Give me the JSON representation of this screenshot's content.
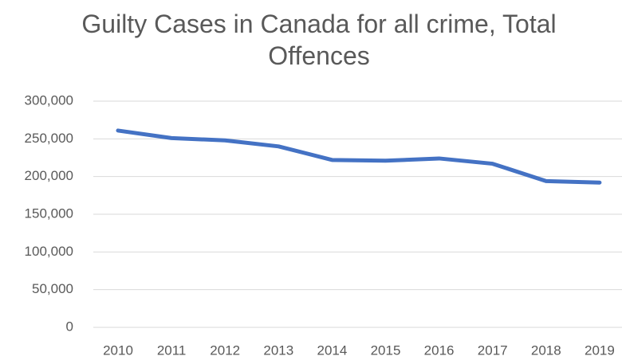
{
  "chart_data": {
    "type": "line",
    "title": "Guilty Cases in Canada for all crime, Total Offences",
    "categories": [
      "2010",
      "2011",
      "2012",
      "2013",
      "2014",
      "2015",
      "2016",
      "2017",
      "2018",
      "2019"
    ],
    "series": [
      {
        "color": "#4472c4",
        "values": [
          261000,
          251000,
          248000,
          240000,
          222000,
          221000,
          224000,
          217000,
          194000,
          192000
        ]
      }
    ],
    "ylim": [
      0,
      300000
    ],
    "yticks": [
      0,
      {
        "value": 50000,
        "label": "50,000"
      },
      {
        "value": 100000,
        "label": "100,000"
      },
      {
        "value": 150000,
        "label": "150,000"
      },
      {
        "value": 200000,
        "label": "200,000"
      },
      {
        "value": 250000,
        "label": "250,000"
      },
      {
        "value": 300000,
        "label": "300,000"
      }
    ],
    "grid": true
  }
}
